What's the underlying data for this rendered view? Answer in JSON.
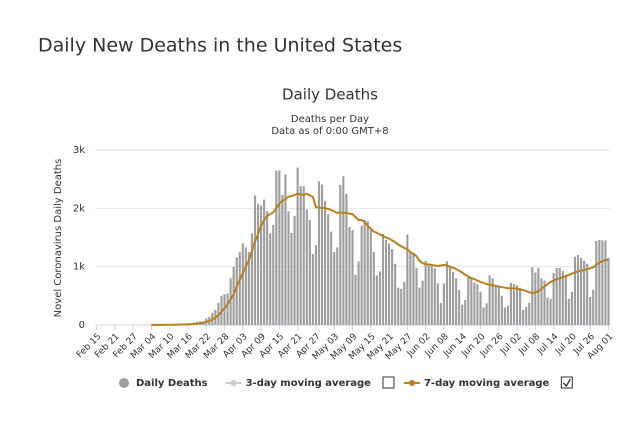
{
  "page_title": "Daily New Deaths in the United States",
  "chart_data": {
    "type": "bar",
    "title": "Daily Deaths",
    "subtitle": "Deaths per Day",
    "note": "Data as of 0:00 GMT+8",
    "y_label": "Novel Coronavirus Daily Deaths",
    "ylim": [
      0,
      3000
    ],
    "yticks": [
      0,
      {
        "value": 1000,
        "label": "1k"
      },
      {
        "value": 2000,
        "label": "2k"
      },
      {
        "value": 3000,
        "label": "3k"
      }
    ],
    "grid": true,
    "categories": [
      "Feb 15",
      null,
      null,
      null,
      null,
      null,
      "Feb 21",
      null,
      null,
      null,
      null,
      null,
      "Feb 27",
      null,
      null,
      null,
      null,
      null,
      "Mar 04",
      null,
      null,
      null,
      null,
      null,
      "Mar 10",
      null,
      null,
      null,
      null,
      null,
      "Mar 16",
      null,
      null,
      null,
      null,
      null,
      "Mar 22",
      null,
      null,
      null,
      null,
      null,
      "Mar 28",
      null,
      null,
      null,
      null,
      null,
      "Apr 03",
      null,
      null,
      null,
      null,
      null,
      "Apr 09",
      null,
      null,
      null,
      null,
      null,
      "Apr 15",
      null,
      null,
      null,
      null,
      null,
      "Apr 21",
      null,
      null,
      null,
      null,
      null,
      "Apr 27",
      null,
      null,
      null,
      null,
      null,
      "May 03",
      null,
      null,
      null,
      null,
      null,
      "May 09",
      null,
      null,
      null,
      null,
      null,
      "May 15",
      null,
      null,
      null,
      null,
      null,
      "May 21",
      null,
      null,
      null,
      null,
      null,
      "May 27",
      null,
      null,
      null,
      null,
      null,
      "Jun 02",
      null,
      null,
      null,
      null,
      null,
      "Jun 08",
      null,
      null,
      null,
      null,
      null,
      "Jun 14",
      null,
      null,
      null,
      null,
      null,
      "Jun 20",
      null,
      null,
      null,
      null,
      null,
      "Jun 26",
      null,
      null,
      null,
      null,
      null,
      "Jul 02",
      null,
      null,
      null,
      null,
      null,
      "Jul 08",
      null,
      null,
      null,
      null,
      null,
      "Jul 14",
      null,
      null,
      null,
      null,
      null,
      "Jul 20",
      null,
      null,
      null,
      null,
      null,
      "Jul 26",
      null,
      null,
      null,
      null,
      null,
      "Aug 01"
    ],
    "series": [
      {
        "name": "Daily Deaths",
        "type": "bar",
        "color": "#9e9e9e",
        "visible": true,
        "values": [
          0,
          0,
          0,
          0,
          0,
          0,
          0,
          0,
          0,
          0,
          0,
          0,
          0,
          0,
          0,
          1,
          5,
          1,
          4,
          1,
          2,
          3,
          4,
          4,
          6,
          8,
          7,
          10,
          10,
          10,
          24,
          23,
          36,
          50,
          64,
          63,
          113,
          140,
          210,
          260,
          380,
          500,
          530,
          540,
          800,
          1000,
          1160,
          1250,
          1400,
          1330,
          1250,
          1570,
          2220,
          2080,
          2050,
          2150,
          1950,
          1570,
          1720,
          2650,
          2650,
          2230,
          2580,
          1950,
          1580,
          1870,
          2700,
          2380,
          2380,
          1980,
          1800,
          1220,
          1370,
          2460,
          2410,
          2130,
          1900,
          1600,
          1250,
          1330,
          2400,
          2550,
          2250,
          1680,
          1630,
          860,
          1090,
          1700,
          1800,
          1780,
          1650,
          1250,
          850,
          920,
          1560,
          1460,
          1400,
          1300,
          1050,
          640,
          620,
          740,
          1550,
          1240,
          1230,
          980,
          640,
          760,
          1100,
          1030,
          1020,
          970,
          710,
          380,
          710,
          1090,
          1000,
          910,
          800,
          600,
          350,
          430,
          850,
          820,
          730,
          700,
          570,
          300,
          370,
          850,
          800,
          680,
          650,
          500,
          300,
          330,
          720,
          700,
          680,
          640,
          260,
          310,
          380,
          990,
          900,
          980,
          800,
          760,
          470,
          450,
          890,
          980,
          980,
          930,
          860,
          450,
          570,
          1170,
          1200,
          1150,
          1100,
          1050,
          480,
          600,
          1440,
          1460,
          1450,
          1450,
          1150
        ]
      },
      {
        "name": "3-day moving average",
        "type": "line",
        "color": "#cccccc",
        "visible": false,
        "checked": false
      },
      {
        "name": "7-day moving average",
        "type": "line",
        "color": "#b8811d",
        "visible": true,
        "checked": true,
        "values": [
          null,
          null,
          null,
          null,
          null,
          null,
          null,
          null,
          null,
          null,
          null,
          null,
          null,
          null,
          null,
          null,
          null,
          null,
          3,
          3,
          3,
          3,
          3,
          4,
          4,
          5,
          6,
          7,
          8,
          9,
          12,
          15,
          19,
          25,
          31,
          39,
          52,
          70,
          95,
          126,
          166,
          226,
          290,
          350,
          440,
          530,
          660,
          770,
          890,
          1010,
          1110,
          1270,
          1430,
          1560,
          1700,
          1800,
          1870,
          1900,
          1930,
          2000,
          2080,
          2130,
          2160,
          2200,
          2210,
          2230,
          2250,
          2240,
          2230,
          2250,
          2220,
          2200,
          2020,
          2010,
          2010,
          2000,
          1990,
          1970,
          1950,
          1920,
          1930,
          1920,
          1920,
          1910,
          1900,
          1850,
          1800,
          1800,
          1760,
          1700,
          1650,
          1600,
          1580,
          1550,
          1530,
          1500,
          1480,
          1450,
          1420,
          1380,
          1350,
          1320,
          1300,
          1250,
          1220,
          1180,
          1100,
          1060,
          1040,
          1040,
          1030,
          1020,
          1010,
          1020,
          1030,
          1020,
          1000,
          980,
          960,
          930,
          900,
          860,
          830,
          800,
          790,
          760,
          740,
          720,
          700,
          690,
          680,
          670,
          660,
          650,
          640,
          630,
          630,
          630,
          620,
          610,
          600,
          580,
          560,
          550,
          560,
          580,
          620,
          660,
          700,
          740,
          760,
          790,
          800,
          820,
          840,
          860,
          880,
          900,
          920,
          930,
          940,
          960,
          970,
          990,
          1030,
          1070,
          1100,
          1110,
          1120
        ]
      }
    ]
  }
}
